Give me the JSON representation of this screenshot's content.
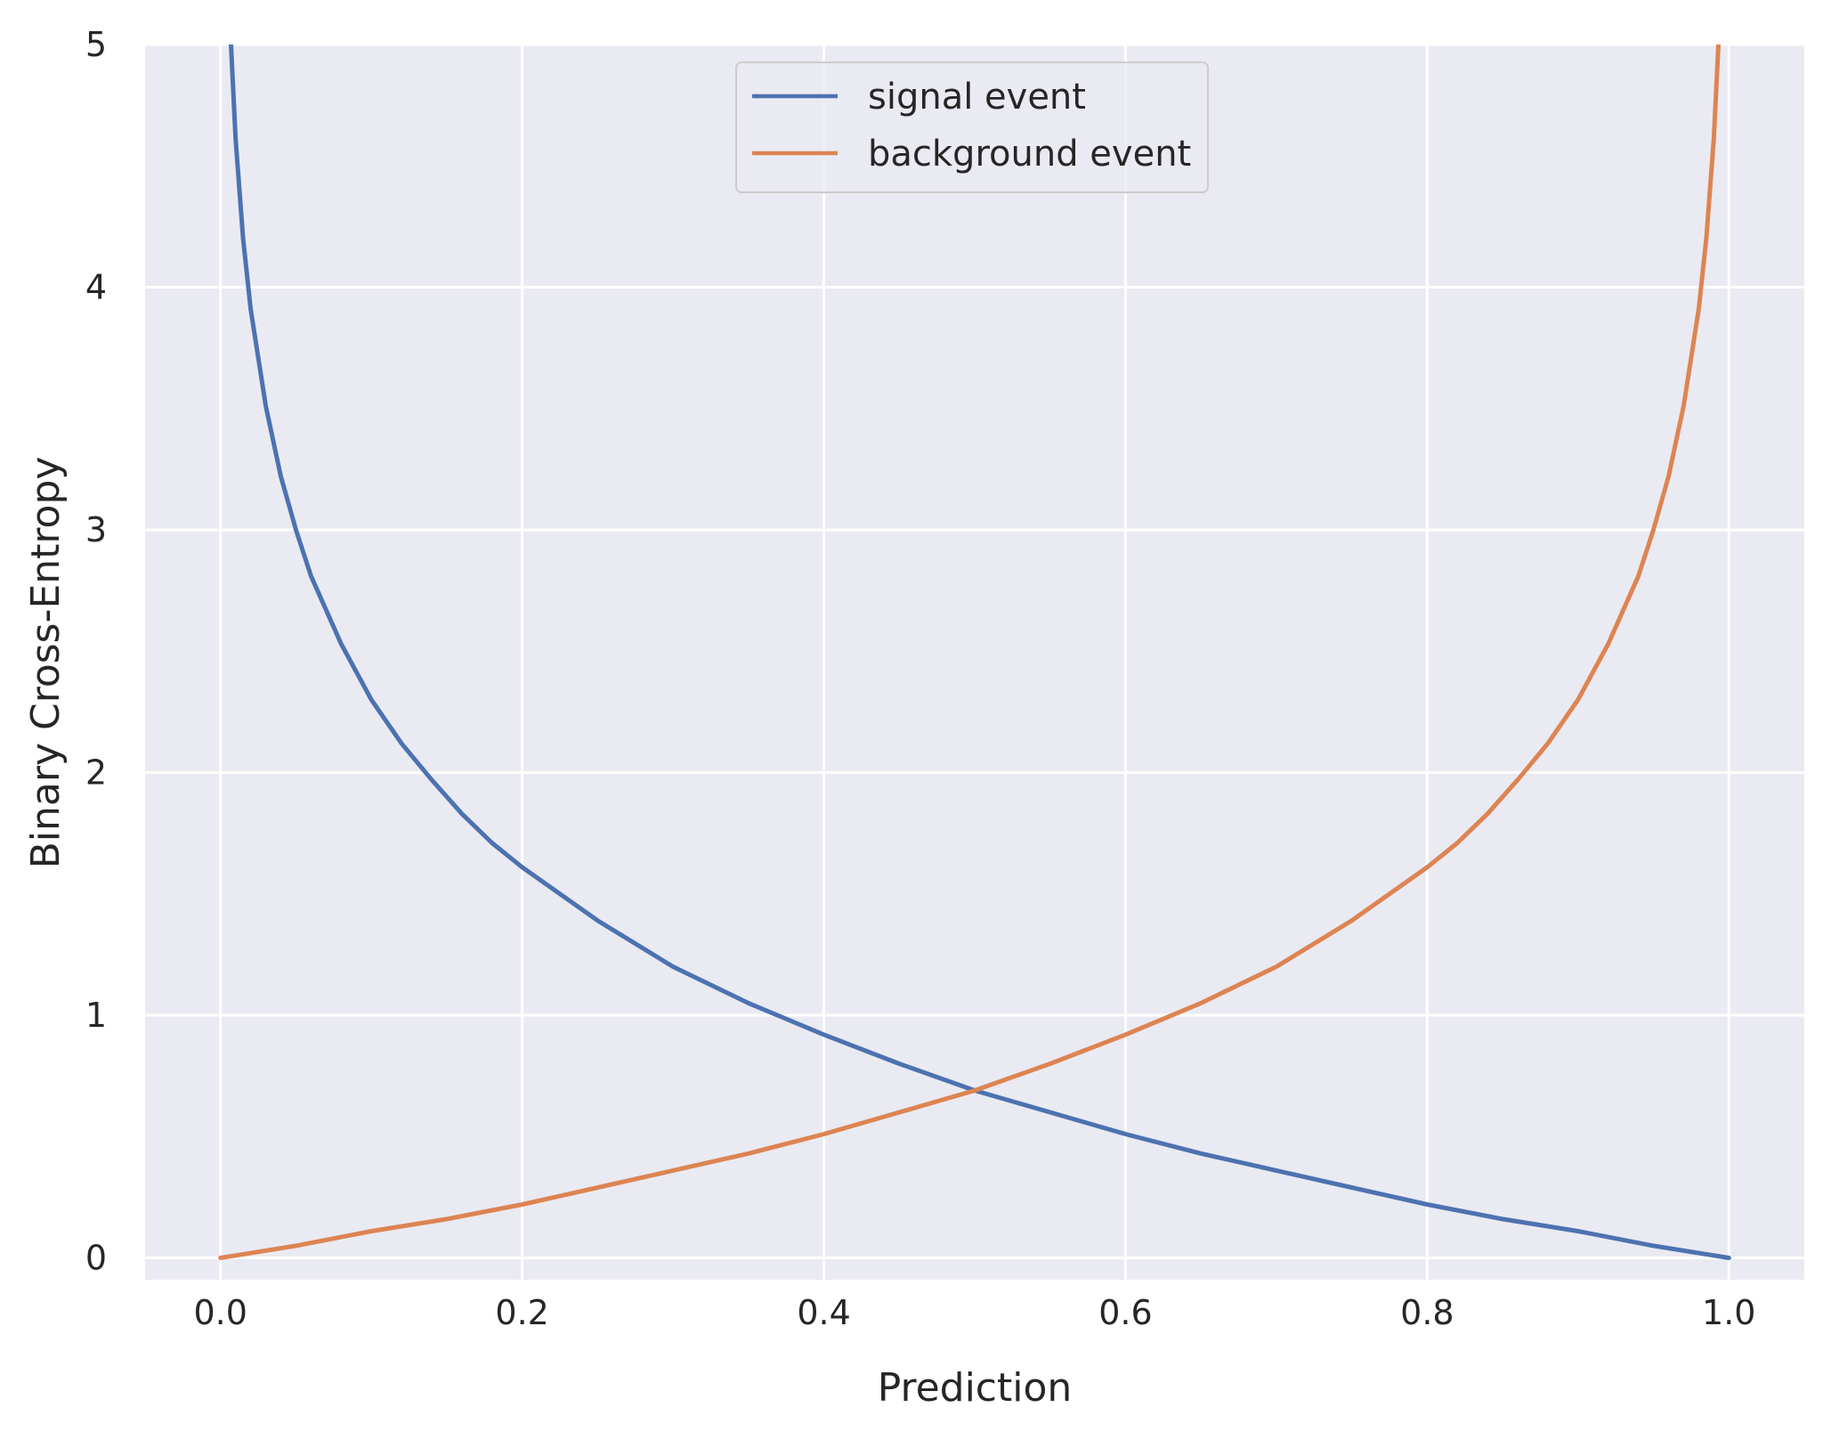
{
  "chart_data": {
    "type": "line",
    "xlabel": "Prediction",
    "ylabel": "Binary Cross-Entropy",
    "xlim": [
      -0.05,
      1.05
    ],
    "ylim": [
      -0.09,
      5
    ],
    "x_ticks": [
      0.0,
      0.2,
      0.4,
      0.6,
      0.8,
      1.0
    ],
    "x_tick_labels": [
      "0.0",
      "0.2",
      "0.4",
      "0.6",
      "0.8",
      "1.0"
    ],
    "y_ticks": [
      0,
      1,
      2,
      3,
      4,
      5
    ],
    "y_tick_labels": [
      "0",
      "1",
      "2",
      "3",
      "4",
      "5"
    ],
    "grid": true,
    "legend_position": "upper center",
    "background_color": "#eaeaf2",
    "grid_color": "#ffffff",
    "series": [
      {
        "name": "signal event",
        "color": "#4c72b0",
        "x": [
          0.006,
          0.01,
          0.015,
          0.02,
          0.03,
          0.04,
          0.05,
          0.06,
          0.08,
          0.1,
          0.12,
          0.14,
          0.16,
          0.18,
          0.2,
          0.25,
          0.3,
          0.35,
          0.4,
          0.45,
          0.5,
          0.55,
          0.6,
          0.65,
          0.7,
          0.75,
          0.8,
          0.85,
          0.9,
          0.95,
          1.0
        ],
        "y": [
          5.12,
          4.61,
          4.2,
          3.91,
          3.51,
          3.22,
          3.0,
          2.81,
          2.53,
          2.3,
          2.12,
          1.97,
          1.83,
          1.71,
          1.61,
          1.39,
          1.2,
          1.05,
          0.92,
          0.8,
          0.69,
          0.6,
          0.51,
          0.43,
          0.36,
          0.29,
          0.22,
          0.16,
          0.11,
          0.05,
          0.0
        ]
      },
      {
        "name": "background event",
        "color": "#dd8452",
        "x": [
          0.0,
          0.05,
          0.1,
          0.15,
          0.2,
          0.25,
          0.3,
          0.35,
          0.4,
          0.45,
          0.5,
          0.55,
          0.6,
          0.65,
          0.7,
          0.75,
          0.8,
          0.82,
          0.84,
          0.86,
          0.88,
          0.9,
          0.92,
          0.94,
          0.95,
          0.96,
          0.97,
          0.98,
          0.985,
          0.99,
          0.994
        ],
        "y": [
          0.0,
          0.05,
          0.11,
          0.16,
          0.22,
          0.29,
          0.36,
          0.43,
          0.51,
          0.6,
          0.69,
          0.8,
          0.92,
          1.05,
          1.2,
          1.39,
          1.61,
          1.71,
          1.83,
          1.97,
          2.12,
          2.3,
          2.53,
          2.81,
          3.0,
          3.22,
          3.51,
          3.91,
          4.2,
          4.61,
          5.12
        ]
      }
    ]
  }
}
